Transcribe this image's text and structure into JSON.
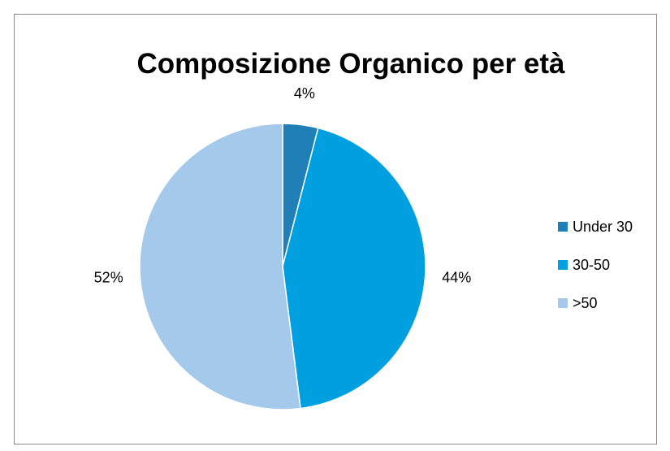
{
  "chart_data": {
    "type": "pie",
    "title": "Composizione Organico per età",
    "categories": [
      "Under 30",
      "30-50",
      ">50"
    ],
    "values": [
      4,
      44,
      52
    ],
    "labels": [
      "4%",
      "44%",
      "52%"
    ],
    "colors": [
      "#1F7FB6",
      "#00A0E0",
      "#A4C9EA"
    ],
    "legend_position": "right"
  }
}
